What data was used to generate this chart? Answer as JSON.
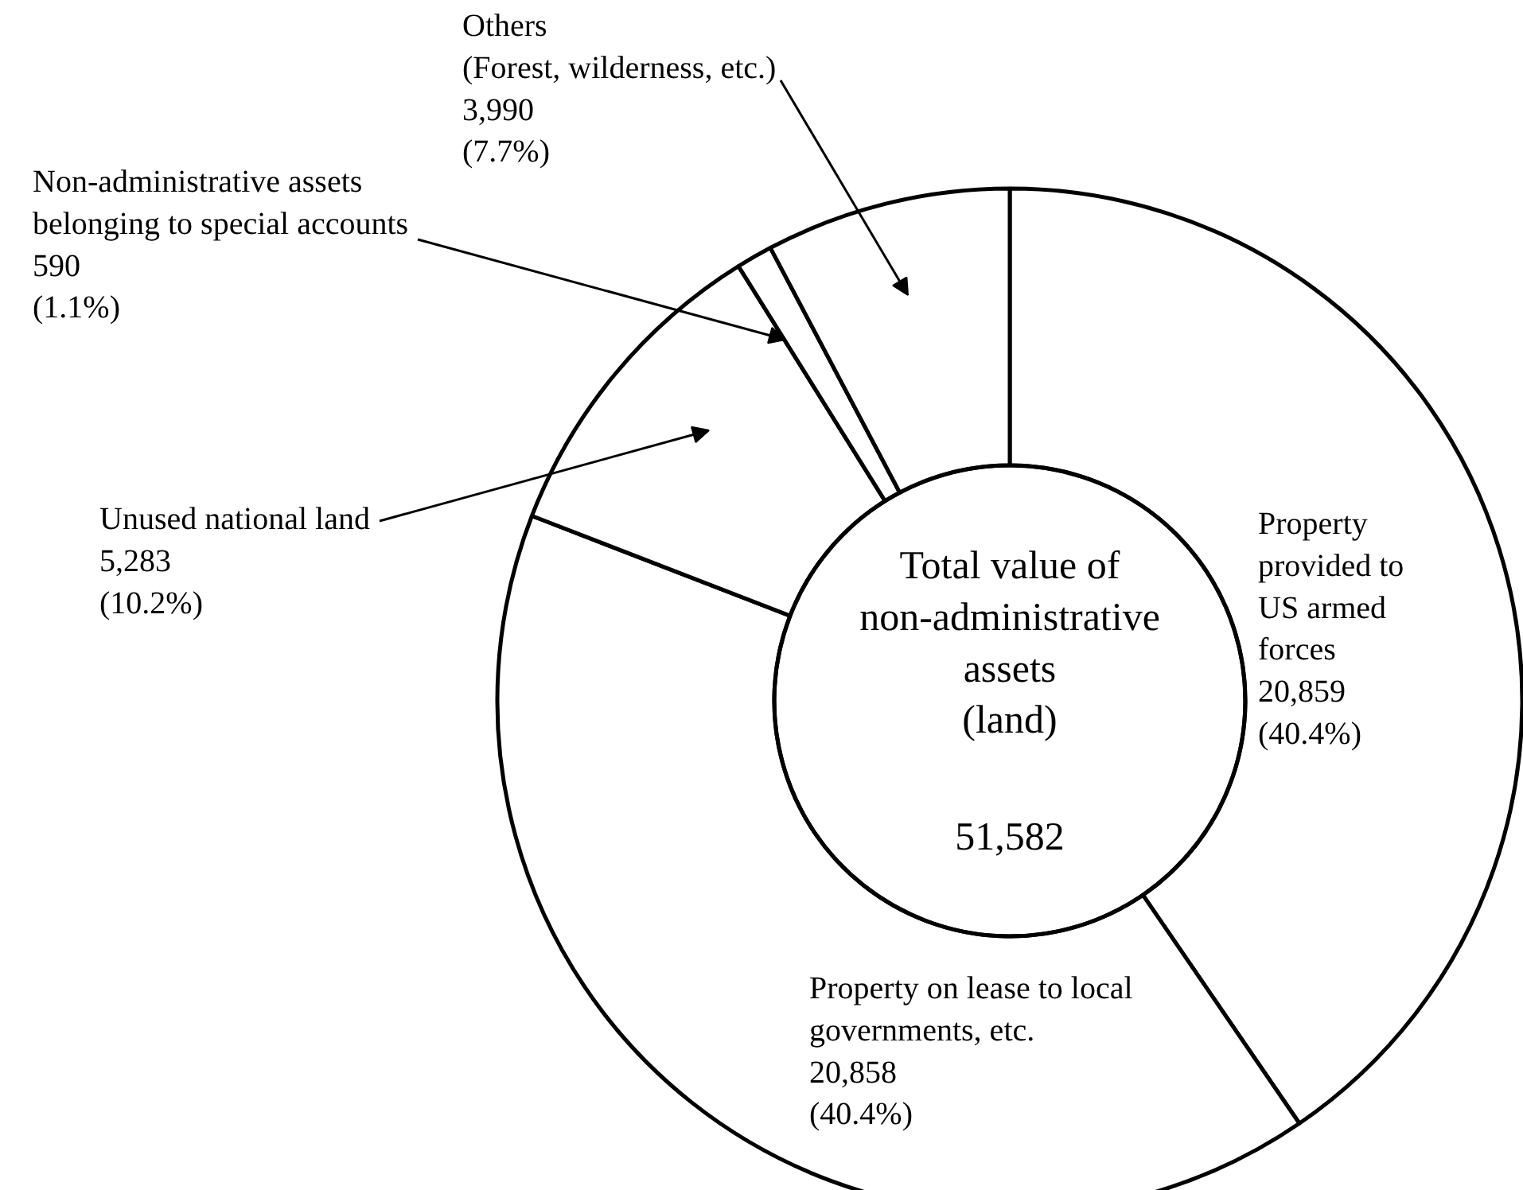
{
  "chart_data": {
    "type": "donut",
    "title": "Total value of non-administrative assets (land)",
    "categories": [
      "Property provided to US armed forces",
      "Property on lease to local governments, etc.",
      "Unused national land",
      "Non-administrative assets belonging to special accounts",
      "Others (Forest, wilderness, etc.)"
    ],
    "values": [
      20859,
      20858,
      5283,
      590,
      3990
    ],
    "colors": [
      "#ffffff",
      "#ffffff",
      "#ffffff",
      "#ffffff",
      "#ffffff"
    ],
    "value_labels": [
      "20,859 (40.4%)",
      "20,858 (40.4%)",
      "5,283 (10.2%)",
      "590 (1.1%)",
      "3,990 (7.7%)"
    ],
    "annotations": [
      "51,582"
    ]
  }
}
